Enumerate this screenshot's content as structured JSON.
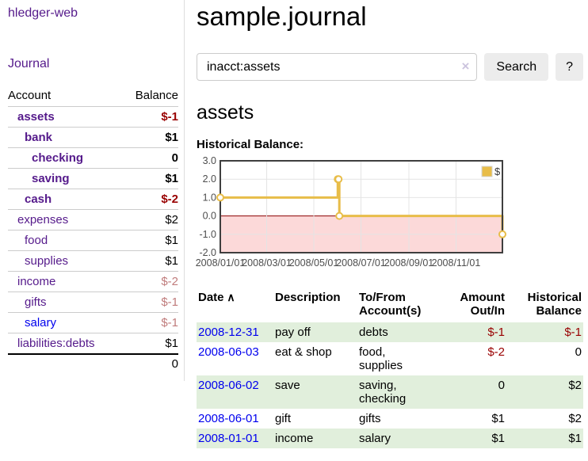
{
  "app": {
    "title": "hledger-web",
    "nav_journal": "Journal"
  },
  "sidebar": {
    "accounts_header": {
      "account": "Account",
      "balance": "Balance"
    },
    "accounts": [
      {
        "name": "assets",
        "indent": 1,
        "bold": true,
        "balance": "$-1",
        "balance_style": "neg-strong"
      },
      {
        "name": "bank",
        "indent": 2,
        "bold": true,
        "balance": "$1",
        "balance_style": "normal"
      },
      {
        "name": "checking",
        "indent": 3,
        "bold": true,
        "balance": "0",
        "balance_style": "normal"
      },
      {
        "name": "saving",
        "indent": 3,
        "bold": true,
        "balance": "$1",
        "balance_style": "normal"
      },
      {
        "name": "cash",
        "indent": 2,
        "bold": true,
        "balance": "$-2",
        "balance_style": "neg-strong"
      },
      {
        "name": "expenses",
        "indent": 1,
        "bold": false,
        "balance": "$2",
        "balance_style": "normal"
      },
      {
        "name": "food",
        "indent": 2,
        "bold": false,
        "balance": "$1",
        "balance_style": "normal"
      },
      {
        "name": "supplies",
        "indent": 2,
        "bold": false,
        "balance": "$1",
        "balance_style": "normal"
      },
      {
        "name": "income",
        "indent": 1,
        "bold": false,
        "balance": "$-2",
        "balance_style": "neg-soft"
      },
      {
        "name": "gifts",
        "indent": 2,
        "bold": false,
        "balance": "$-1",
        "balance_style": "neg-soft"
      },
      {
        "name": "salary",
        "indent": 2,
        "bold": false,
        "balance": "$-1",
        "balance_style": "neg-soft",
        "link_style": "unvisited"
      },
      {
        "name": "liabilities:debts",
        "indent": 1,
        "bold": false,
        "balance": "$1",
        "balance_style": "normal"
      }
    ],
    "total": "0"
  },
  "header": {
    "title": "sample.journal"
  },
  "search": {
    "value": "inacct:assets",
    "clear_icon": "×",
    "button_label": "Search",
    "help_label": "?"
  },
  "account_page": {
    "heading": "assets",
    "chart_title": "Historical Balance:"
  },
  "chart_data": {
    "type": "line",
    "step": true,
    "title": "Historical Balance",
    "series": [
      {
        "name": "$",
        "color": "#e8bd49",
        "points": [
          {
            "date": "2008-01-01",
            "value": 1
          },
          {
            "date": "2008-06-01",
            "value": 2
          },
          {
            "date": "2008-06-02",
            "value": 2
          },
          {
            "date": "2008-06-03",
            "value": 0
          },
          {
            "date": "2008-12-31",
            "value": -1
          }
        ]
      }
    ],
    "x_range": [
      "2008-01-01",
      "2008-12-31"
    ],
    "ylim": [
      -2,
      3
    ],
    "y_ticks": [
      "3.0",
      "2.0",
      "1.0",
      "0.0",
      "-1.0",
      "-2.0"
    ],
    "x_ticks": [
      "2008/01/01",
      "2008/03/01",
      "2008/05/01",
      "2008/07/01",
      "2008/09/01",
      "2008/11/01"
    ],
    "legend": {
      "label": "$",
      "position": "top-right"
    },
    "colors": {
      "negative_region": "#fcd9d9",
      "zero_line": "#8b0000",
      "grid": "#e4e4e4",
      "plot_border": "#3f3f3f",
      "tick_text": "#4d4d4d",
      "marker_fill": "#ffffff"
    },
    "grid": true
  },
  "register": {
    "columns": [
      {
        "label": "Date",
        "align": "left",
        "sorted": "asc"
      },
      {
        "label": "Description",
        "align": "left"
      },
      {
        "label": "To/From Account(s)",
        "align": "left"
      },
      {
        "label": "Amount Out/In",
        "align": "right"
      },
      {
        "label": "Historical Balance",
        "align": "right"
      }
    ],
    "sort_icon": "∧",
    "rows": [
      {
        "date": "2008-12-31",
        "description": "pay off",
        "accounts": "debts",
        "amount": "$-1",
        "amount_negative": true,
        "balance": "$-1",
        "balance_negative": true
      },
      {
        "date": "2008-06-03",
        "description": "eat & shop",
        "accounts": "food, supplies",
        "amount": "$-2",
        "amount_negative": true,
        "balance": "0",
        "balance_negative": false
      },
      {
        "date": "2008-06-02",
        "description": "save",
        "accounts": "saving, checking",
        "amount": "0",
        "amount_negative": false,
        "balance": "$2",
        "balance_negative": false
      },
      {
        "date": "2008-06-01",
        "description": "gift",
        "accounts": "gifts",
        "amount": "$1",
        "amount_negative": false,
        "balance": "$2",
        "balance_negative": false
      },
      {
        "date": "2008-01-01",
        "description": "income",
        "accounts": "salary",
        "amount": "$1",
        "amount_negative": false,
        "balance": "$1",
        "balance_negative": false
      }
    ]
  }
}
